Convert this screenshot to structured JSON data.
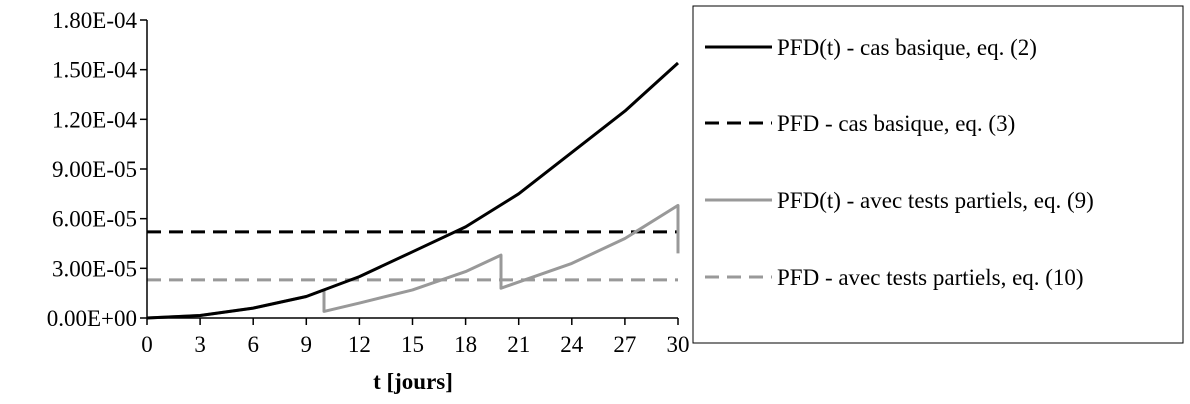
{
  "chart_data": {
    "type": "line",
    "title": "",
    "xlabel": "t [jours]",
    "ylabel": "",
    "xlim": [
      0,
      30
    ],
    "ylim": [
      0,
      0.00018
    ],
    "x_ticks": [
      0,
      3,
      6,
      9,
      12,
      15,
      18,
      21,
      24,
      27,
      30
    ],
    "x_tick_labels": [
      "0",
      "3",
      "6",
      "9",
      "12",
      "15",
      "18",
      "21",
      "24",
      "27",
      "30"
    ],
    "y_ticks": [
      0,
      3e-05,
      6e-05,
      9e-05,
      0.00012,
      0.00015,
      0.00018
    ],
    "y_tick_labels": [
      "0.00E+00",
      "3.00E-05",
      "6.00E-05",
      "9.00E-05",
      "1.20E-04",
      "1.50E-04",
      "1.80E-04"
    ],
    "grid": false,
    "legend_position": "right",
    "series": [
      {
        "name": "PFD(t) - cas basique, eq. (2)",
        "color": "#000000",
        "style": "solid",
        "x": [
          0,
          3,
          6,
          9,
          10,
          12,
          15,
          18,
          21,
          24,
          27,
          30
        ],
        "y": [
          0,
          1.5e-06,
          6e-06,
          1.3e-05,
          1.7e-05,
          2.5e-05,
          4e-05,
          5.5e-05,
          7.5e-05,
          0.0001,
          0.000125,
          0.000154
        ]
      },
      {
        "name": "PFD - cas basique, eq. (3)",
        "color": "#000000",
        "style": "dashed",
        "x": [
          0,
          30
        ],
        "y": [
          5.2e-05,
          5.2e-05
        ]
      },
      {
        "name": "PFD(t) - avec tests partiels, eq. (9)",
        "color": "#999999",
        "style": "solid",
        "x": [
          0,
          3,
          6,
          9,
          10,
          10,
          12,
          15,
          18,
          20,
          20,
          24,
          27,
          30,
          30
        ],
        "y": [
          0,
          1.5e-06,
          6e-06,
          1.3e-05,
          1.7e-05,
          4e-06,
          9e-06,
          1.7e-05,
          2.8e-05,
          3.8e-05,
          1.8e-05,
          3.3e-05,
          4.8e-05,
          6.8e-05,
          3.9e-05
        ]
      },
      {
        "name": "PFD - avec tests partiels, eq. (10)",
        "color": "#999999",
        "style": "dashed",
        "x": [
          0,
          30
        ],
        "y": [
          2.3e-05,
          2.3e-05
        ]
      }
    ]
  }
}
